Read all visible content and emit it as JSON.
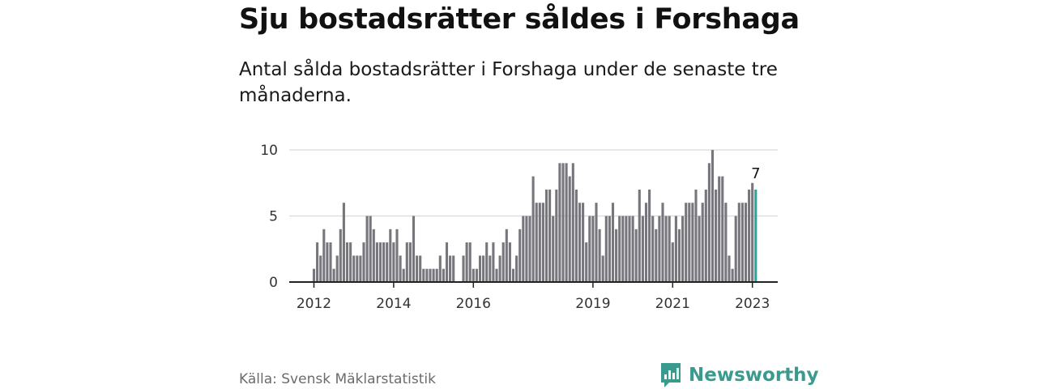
{
  "header": {
    "title": "Sju bostadsrätter såldes i Forshaga",
    "subtitle": "Antal sålda bostadsrätter i Forshaga under de senaste tre månaderna."
  },
  "footer": {
    "source": "Källa: Svensk Mäklarstatistik",
    "brand": "Newsworthy"
  },
  "colors": {
    "bar": "#77767d",
    "highlight": "#26a69a",
    "brand": "#3a9a8e",
    "grid": "#d9d9d9",
    "axis": "#222222"
  },
  "chart_data": {
    "type": "bar",
    "title": "Sju bostadsrätter såldes i Forshaga",
    "xlabel": "",
    "ylabel": "",
    "ylim": [
      0,
      10
    ],
    "yticks": [
      0,
      5,
      10
    ],
    "x_tick_labels": [
      "2012",
      "2014",
      "2016",
      "2019",
      "2021",
      "2023"
    ],
    "x_tick_positions": [
      "2012-01",
      "2014-01",
      "2016-01",
      "2019-01",
      "2021-01",
      "2023-01"
    ],
    "grid": "horizontal",
    "highlight_label": "7",
    "categories": [
      "2012-01",
      "2012-02",
      "2012-03",
      "2012-04",
      "2012-05",
      "2012-06",
      "2012-07",
      "2012-08",
      "2012-09",
      "2012-10",
      "2012-11",
      "2012-12",
      "2013-01",
      "2013-02",
      "2013-03",
      "2013-04",
      "2013-05",
      "2013-06",
      "2013-07",
      "2013-08",
      "2013-09",
      "2013-10",
      "2013-11",
      "2013-12",
      "2014-01",
      "2014-02",
      "2014-03",
      "2014-04",
      "2014-05",
      "2014-06",
      "2014-07",
      "2014-08",
      "2014-09",
      "2014-10",
      "2014-11",
      "2014-12",
      "2015-01",
      "2015-02",
      "2015-03",
      "2015-04",
      "2015-05",
      "2015-06",
      "2015-07",
      "2015-08",
      "2015-09",
      "2015-10",
      "2015-11",
      "2015-12",
      "2016-01",
      "2016-02",
      "2016-03",
      "2016-04",
      "2016-05",
      "2016-06",
      "2016-07",
      "2016-08",
      "2016-09",
      "2016-10",
      "2016-11",
      "2016-12",
      "2017-01",
      "2017-02",
      "2017-03",
      "2017-04",
      "2017-05",
      "2017-06",
      "2017-07",
      "2017-08",
      "2017-09",
      "2017-10",
      "2017-11",
      "2017-12",
      "2018-01",
      "2018-02",
      "2018-03",
      "2018-04",
      "2018-05",
      "2018-06",
      "2018-07",
      "2018-08",
      "2018-09",
      "2018-10",
      "2018-11",
      "2018-12",
      "2019-01",
      "2019-02",
      "2019-03",
      "2019-04",
      "2019-05",
      "2019-06",
      "2019-07",
      "2019-08",
      "2019-09",
      "2019-10",
      "2019-11",
      "2019-12",
      "2020-01",
      "2020-02",
      "2020-03",
      "2020-04",
      "2020-05",
      "2020-06",
      "2020-07",
      "2020-08",
      "2020-09",
      "2020-10",
      "2020-11",
      "2020-12",
      "2021-01",
      "2021-02",
      "2021-03",
      "2021-04",
      "2021-05",
      "2021-06",
      "2021-07",
      "2021-08",
      "2021-09",
      "2021-10",
      "2021-11",
      "2021-12",
      "2022-01",
      "2022-02",
      "2022-03",
      "2022-04",
      "2022-05",
      "2022-06",
      "2022-07",
      "2022-08",
      "2022-09",
      "2022-10",
      "2022-11",
      "2022-12",
      "2023-01",
      "2023-02"
    ],
    "values": [
      1,
      3,
      2,
      4,
      3,
      3,
      1,
      2,
      4,
      6,
      3,
      3,
      2,
      2,
      2,
      3,
      5,
      5,
      4,
      3,
      3,
      3,
      3,
      4,
      3,
      4,
      2,
      1,
      3,
      3,
      5,
      2,
      2,
      1,
      1,
      1,
      1,
      1,
      2,
      1,
      3,
      2,
      2,
      0,
      0,
      2,
      3,
      3,
      1,
      1,
      2,
      2,
      3,
      2,
      3,
      1,
      2,
      3,
      4,
      3,
      1,
      2,
      4,
      5,
      5,
      5,
      8,
      6,
      6,
      6,
      7,
      7,
      5,
      7,
      9,
      9,
      9,
      8,
      9,
      7,
      6,
      6,
      3,
      5,
      5,
      6,
      4,
      2,
      5,
      5,
      6,
      4,
      5,
      5,
      5,
      5,
      5,
      4,
      7,
      5,
      6,
      7,
      5,
      4,
      5,
      6,
      5,
      5,
      3,
      5,
      4,
      5,
      6,
      6,
      6,
      7,
      5,
      6,
      7,
      9,
      10,
      7,
      8,
      8,
      6,
      2,
      1,
      5,
      6,
      6,
      6,
      7,
      7.5,
      7
    ]
  }
}
